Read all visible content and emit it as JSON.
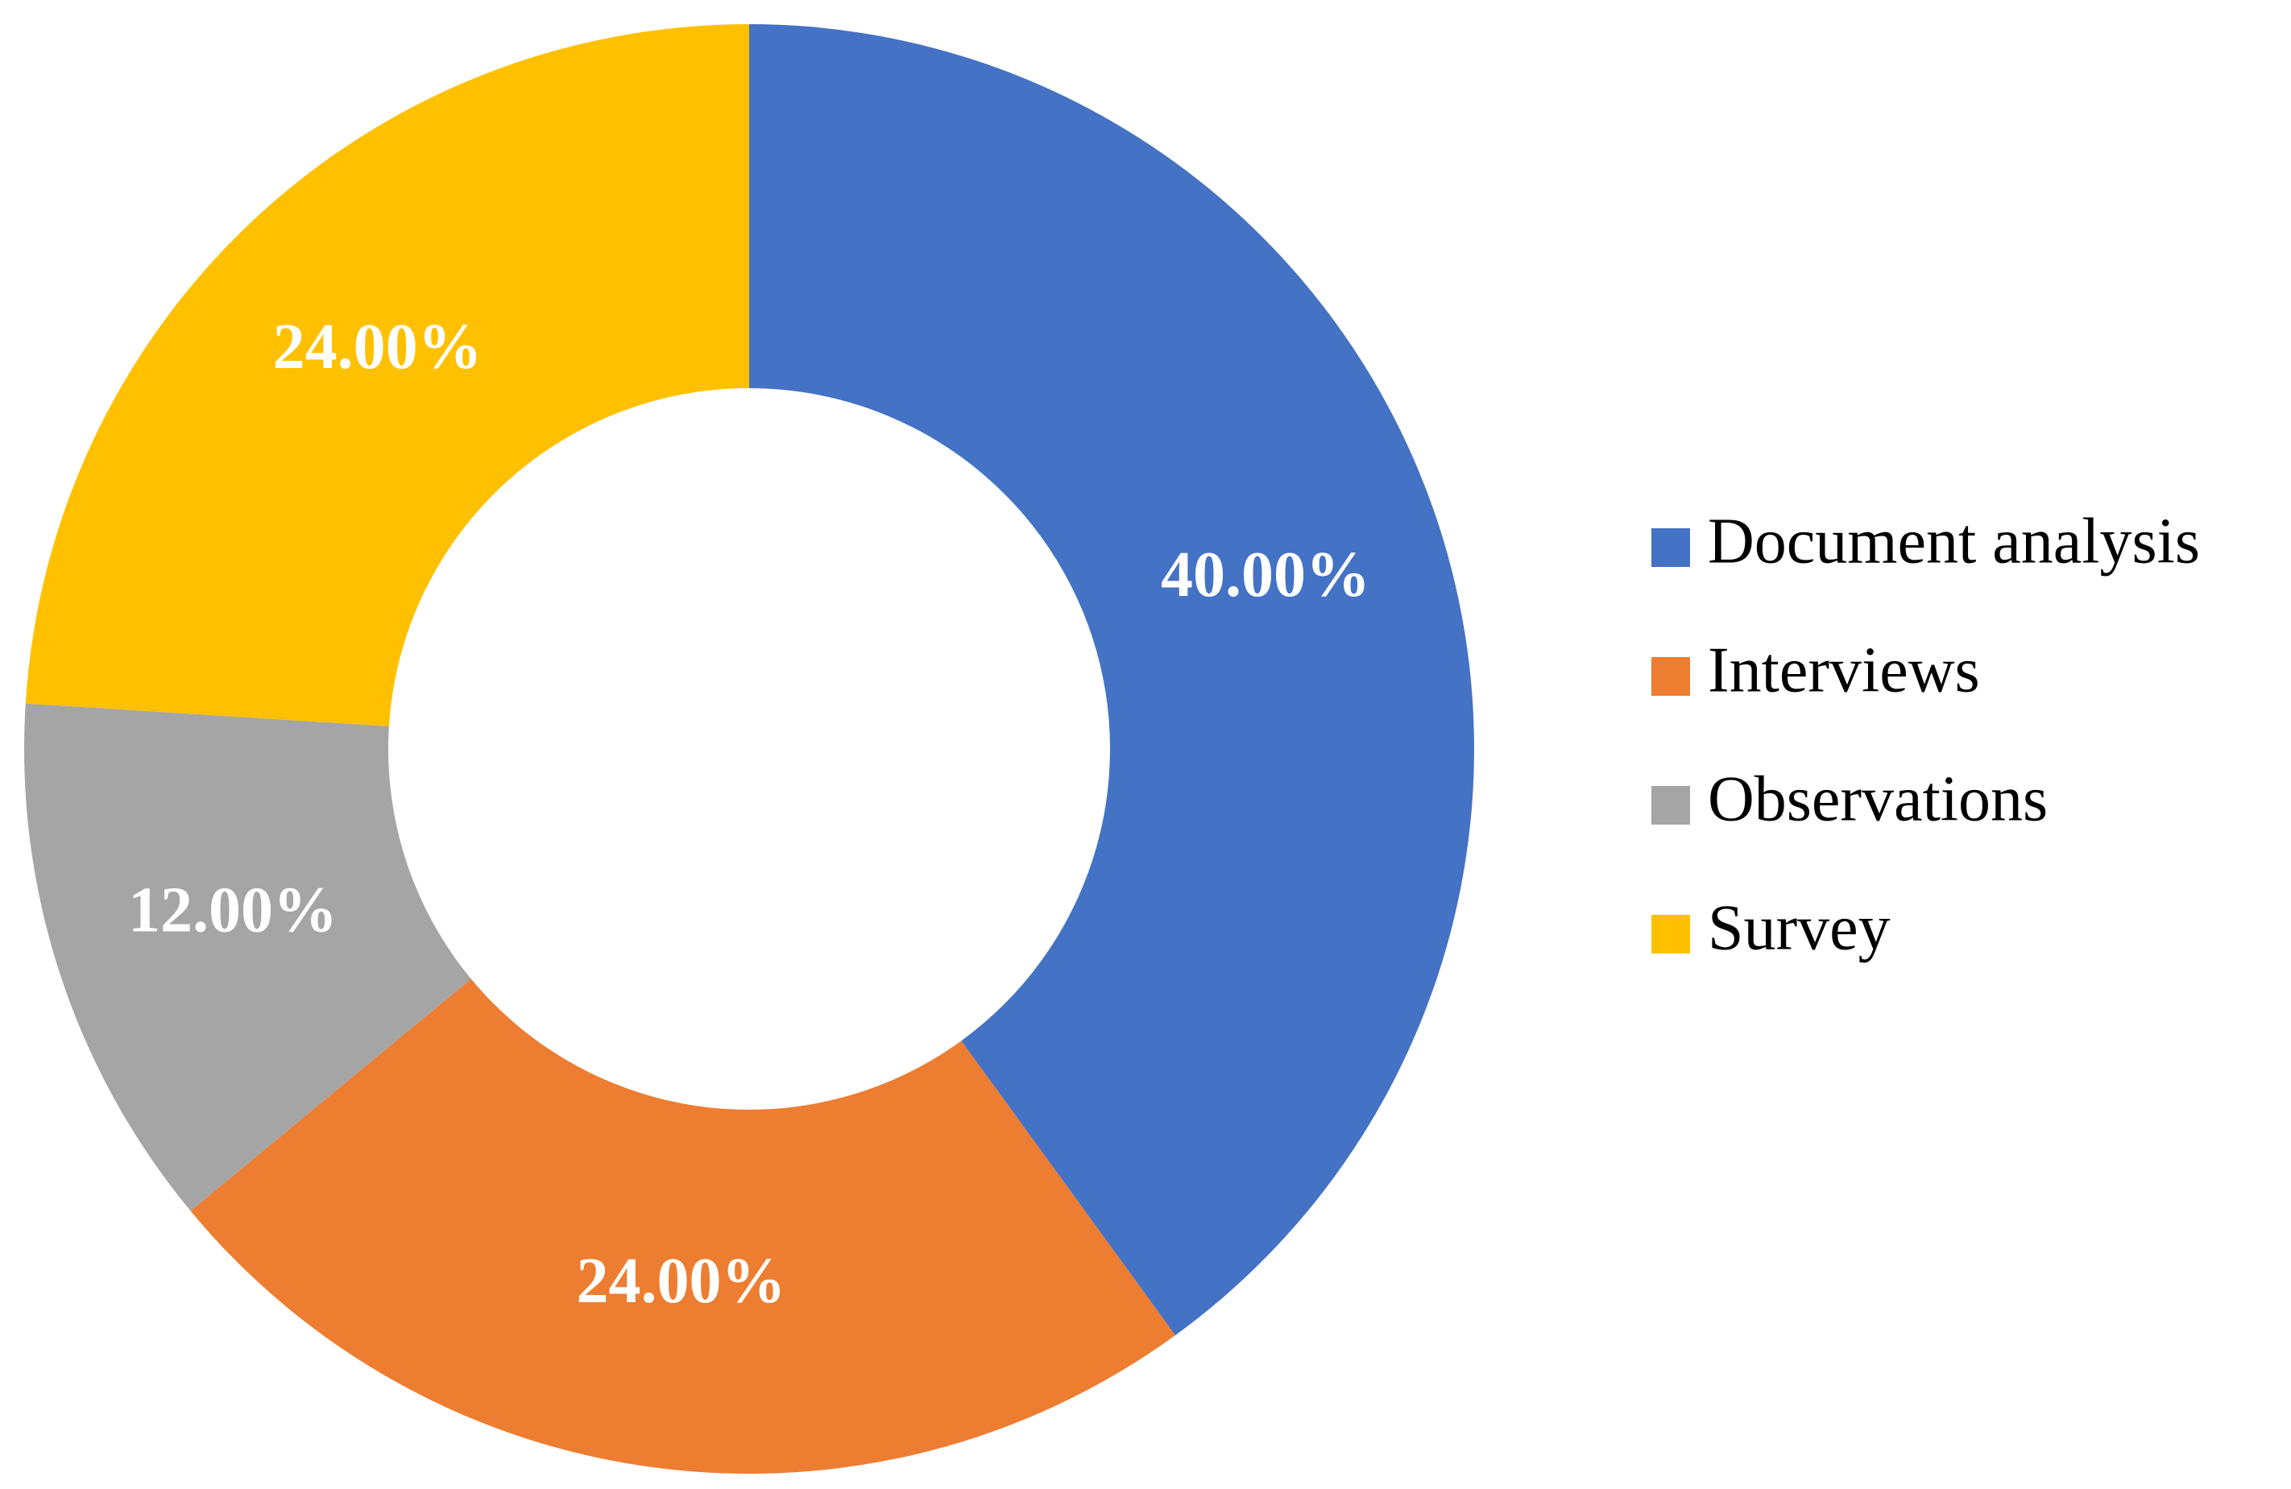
{
  "chart_data": {
    "type": "pie",
    "variant": "donut",
    "title": "",
    "categories": [
      "Document analysis",
      "Interviews",
      "Observations",
      "Survey"
    ],
    "values": [
      40.0,
      24.0,
      12.0,
      24.0
    ],
    "labels": [
      "40.00%",
      "24.00%",
      "12.00%",
      "24.00%"
    ],
    "colors": [
      "#4472C4",
      "#ED7D31",
      "#A5A5A5",
      "#FFC000"
    ],
    "legend_position": "right",
    "start_angle": "top",
    "direction": "clockwise"
  }
}
